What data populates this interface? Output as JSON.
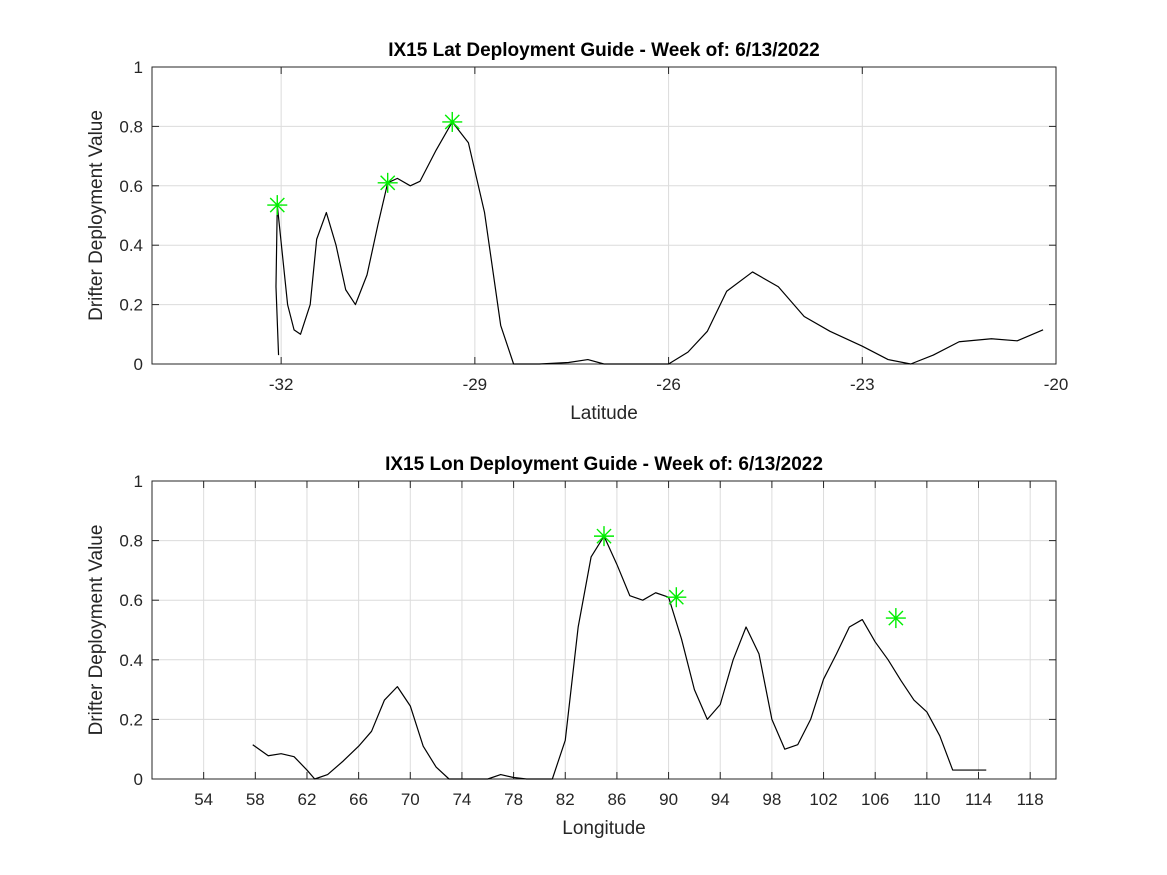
{
  "chart_data": [
    {
      "type": "line",
      "title": "IX15 Lat Deployment Guide - Week of: 6/13/2022",
      "xlabel": "Latitude",
      "ylabel": "Drifter Deployment Value",
      "xlim": [
        -34,
        -20
      ],
      "ylim": [
        0,
        1
      ],
      "grid": true,
      "xticks": [
        -32,
        -29,
        -26,
        -23,
        -20
      ],
      "xtick_labels": [
        "-32",
        "-29",
        "-26",
        "-23",
        "-20"
      ],
      "yticks": [
        0,
        0.2,
        0.4,
        0.6,
        0.8,
        1
      ],
      "ytick_labels": [
        "0",
        "0.2",
        "0.4",
        "0.6",
        "0.8",
        "1"
      ],
      "series": [
        {
          "x": [
            -32.04,
            -32.08,
            -32.06,
            -31.9,
            -31.8,
            -31.7,
            -31.55,
            -31.45,
            -31.3,
            -31.15,
            -31.0,
            -30.85,
            -30.67,
            -30.5,
            -30.35,
            -30.2,
            -30.0,
            -29.85,
            -29.6,
            -29.35,
            -29.1,
            -28.85,
            -28.6,
            -28.4,
            -28.0,
            -27.55,
            -27.25,
            -27.0,
            -26.5,
            -26.0,
            -25.7,
            -25.4,
            -25.1,
            -24.7,
            -24.3,
            -23.9,
            -23.5,
            -23.0,
            -22.6,
            -22.25,
            -21.9,
            -21.5,
            -21.0,
            -20.6,
            -20.2
          ],
          "y": [
            0.03,
            0.26,
            0.535,
            0.2,
            0.115,
            0.1,
            0.2,
            0.42,
            0.51,
            0.4,
            0.25,
            0.2,
            0.3,
            0.47,
            0.61,
            0.625,
            0.6,
            0.615,
            0.72,
            0.815,
            0.745,
            0.51,
            0.13,
            0.0,
            0.0,
            0.005,
            0.015,
            0.0,
            0.0,
            0.0,
            0.04,
            0.11,
            0.245,
            0.31,
            0.26,
            0.16,
            0.11,
            0.06,
            0.015,
            0.0,
            0.03,
            0.075,
            0.085,
            0.078,
            0.115
          ]
        }
      ],
      "peaks": [
        {
          "x": -32.06,
          "y": 0.535
        },
        {
          "x": -30.35,
          "y": 0.61
        },
        {
          "x": -29.35,
          "y": 0.815
        }
      ],
      "marker_color": "#00ee00",
      "line_color": "#000000"
    },
    {
      "type": "line",
      "title": "IX15 Lon Deployment Guide - Week of: 6/13/2022",
      "xlabel": "Longitude",
      "ylabel": "Drifter Deployment Value",
      "xlim": [
        50,
        120
      ],
      "ylim": [
        0,
        1
      ],
      "grid": true,
      "xticks": [
        54,
        58,
        62,
        66,
        70,
        74,
        78,
        82,
        86,
        90,
        94,
        98,
        102,
        106,
        110,
        114,
        118
      ],
      "xtick_labels": [
        "54",
        "58",
        "62",
        "66",
        "70",
        "74",
        "78",
        "82",
        "86",
        "90",
        "94",
        "98",
        "102",
        "106",
        "110",
        "114",
        "118"
      ],
      "yticks": [
        0,
        0.2,
        0.4,
        0.6,
        0.8,
        1
      ],
      "ytick_labels": [
        "0",
        "0.2",
        "0.4",
        "0.6",
        "0.8",
        "1"
      ],
      "series": [
        {
          "x": [
            57.8,
            59.0,
            60.0,
            61.0,
            62.0,
            62.6,
            63.6,
            64.8,
            66.0,
            67.0,
            68.0,
            69.0,
            70.0,
            71.0,
            72.0,
            73.0,
            74.0,
            75.0,
            76.0,
            77.0,
            78.0,
            79.0,
            80.0,
            81.0,
            82.0,
            83.0,
            84.0,
            85.0,
            86.0,
            87.0,
            88.0,
            89.0,
            90.0,
            91.0,
            92.0,
            93.0,
            94.0,
            95.0,
            96.0,
            97.0,
            98.0,
            99.0,
            100.0,
            101.0,
            102.0,
            103.0,
            104.0,
            105.0,
            106.0,
            107.0,
            108.0,
            109.0,
            110.0,
            111.0,
            112.0,
            113.0,
            114.0
          ],
          "y": [
            0.115,
            0.078,
            0.085,
            0.075,
            0.03,
            0.0,
            0.015,
            0.06,
            0.11,
            0.16,
            0.265,
            0.31,
            0.245,
            0.11,
            0.04,
            0.0,
            0.0,
            0.0,
            0.0,
            0.015,
            0.005,
            0.0,
            0.0,
            0.0,
            0.13,
            0.51,
            0.745,
            0.815,
            0.72,
            0.615,
            0.6,
            0.625,
            0.61,
            0.47,
            0.3,
            0.2,
            0.25,
            0.4,
            0.51,
            0.42,
            0.2,
            0.1,
            0.115,
            0.2,
            0.335,
            0.42,
            0.51,
            0.535,
            0.46,
            0.4,
            0.33,
            0.265,
            0.225,
            0.145,
            0.03,
            0.0,
            0.0
          ],
          "x_end": 114.6
        }
      ],
      "peaks": [
        {
          "x": 85.0,
          "y": 0.815
        },
        {
          "x": 90.6,
          "y": 0.61
        },
        {
          "x": 107.6,
          "y": 0.54
        }
      ],
      "marker_color": "#00ee00",
      "line_color": "#000000"
    }
  ]
}
